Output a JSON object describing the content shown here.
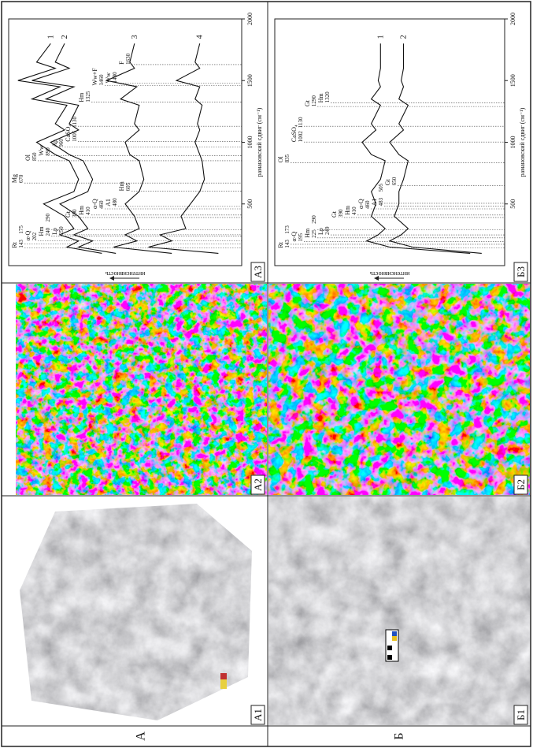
{
  "row_labels": [
    "А",
    "Б"
  ],
  "panels": [
    {
      "label": "А1"
    },
    {
      "label": "А2"
    },
    {
      "label": "А3"
    },
    {
      "label": "Б1"
    },
    {
      "label": "Б2"
    },
    {
      "label": "Б3"
    }
  ],
  "chart_data": [
    {
      "type": "line",
      "xlabel": "рамановский сдвиг (см⁻¹)",
      "ylabel": "интенсивность",
      "xlim": [
        0,
        2000
      ],
      "xticks": [
        500,
        1000,
        1500,
        2000
      ],
      "ylim": [
        0,
        100
      ],
      "x": [
        100,
        150,
        200,
        250,
        300,
        400,
        500,
        600,
        700,
        850,
        900,
        1000,
        1100,
        1150,
        1300,
        1350,
        1450,
        1500,
        1600,
        1650,
        1800
      ],
      "series": [
        {
          "name": "1",
          "color": "#111111",
          "values": [
            60,
            75,
            70,
            78,
            72,
            76,
            85,
            72,
            70,
            74,
            80,
            88,
            76,
            80,
            75,
            90,
            78,
            96,
            80,
            88,
            82
          ]
        },
        {
          "name": "2",
          "color": "#111111",
          "values": [
            54,
            70,
            64,
            72,
            66,
            70,
            78,
            66,
            64,
            68,
            74,
            82,
            70,
            74,
            70,
            84,
            72,
            90,
            74,
            80,
            76
          ]
        },
        {
          "name": "3",
          "color": "#111111",
          "values": [
            30,
            55,
            45,
            50,
            44,
            46,
            50,
            44,
            42,
            44,
            48,
            50,
            44,
            46,
            44,
            52,
            45,
            58,
            46,
            48,
            46
          ]
        },
        {
          "name": "4",
          "color": "#111111",
          "values": [
            10,
            40,
            30,
            35,
            24,
            26,
            22,
            18,
            16,
            17,
            18,
            20,
            18,
            19,
            17,
            20,
            18,
            28,
            18,
            20,
            18
          ]
        }
      ],
      "annotations": [
        {
          "label": "Rt",
          "values": [
            143,
            175
          ]
        },
        {
          "label": "α-Q",
          "values": [
            202
          ]
        },
        {
          "label": "Hm",
          "values": [
            240,
            290
          ]
        },
        {
          "label": "Lp",
          "values": [
            250
          ]
        },
        {
          "label": "Gt",
          "values": [
            390
          ]
        },
        {
          "label": "Hm",
          "values": [
            410
          ]
        },
        {
          "label": "α-Q",
          "values": [
            460
          ]
        },
        {
          "label": "A1",
          "values": [
            480
          ]
        },
        {
          "label": "Hm",
          "values": [
            605
          ]
        },
        {
          "label": "Mg",
          "values": [
            670
          ]
        },
        {
          "label": "Ol",
          "values": [
            850
          ]
        },
        {
          "label": "Ww",
          "values": [
            890
          ]
        },
        {
          "label": "Ap",
          "values": [
            960
          ]
        },
        {
          "label": "CaSO₄",
          "values": [
            1005,
            1130
          ]
        },
        {
          "label": "Hm",
          "values": [
            1325
          ]
        },
        {
          "label": "Ww+F",
          "values": [
            1460
          ]
        },
        {
          "label": "Ww",
          "values": [
            1480
          ]
        },
        {
          "label": "F",
          "values": [
            1630
          ]
        }
      ]
    },
    {
      "type": "line",
      "xlabel": "рамановский сдвиг (см⁻¹)",
      "ylabel": "интенсивность",
      "xlim": [
        0,
        2000
      ],
      "xticks": [
        500,
        1000,
        1500,
        2000
      ],
      "ylim": [
        0,
        100
      ],
      "x": [
        100,
        150,
        200,
        250,
        300,
        400,
        500,
        600,
        700,
        850,
        900,
        1000,
        1100,
        1150,
        1300,
        1350,
        1450,
        1500,
        1600,
        1650,
        1800
      ],
      "series": [
        {
          "name": "1",
          "color": "#111111",
          "values": [
            15,
            50,
            60,
            55,
            52,
            58,
            56,
            58,
            54,
            52,
            58,
            62,
            56,
            58,
            54,
            58,
            54,
            55,
            54,
            54,
            54
          ]
        },
        {
          "name": "2",
          "color": "#111111",
          "values": [
            10,
            40,
            50,
            45,
            42,
            48,
            46,
            46,
            44,
            42,
            46,
            50,
            44,
            46,
            42,
            46,
            44,
            45,
            44,
            44,
            44
          ]
        }
      ],
      "annotations": [
        {
          "label": "Rt",
          "values": [
            143,
            173
          ]
        },
        {
          "label": "α-Q",
          "values": [
            195
          ]
        },
        {
          "label": "Hm",
          "values": [
            225,
            290
          ]
        },
        {
          "label": "Lp",
          "values": [
            249
          ]
        },
        {
          "label": "Gt",
          "values": [
            390
          ]
        },
        {
          "label": "Hm",
          "values": [
            410
          ]
        },
        {
          "label": "α-Q",
          "values": [
            460
          ]
        },
        {
          "label": "A1",
          "values": [
            483,
            505
          ]
        },
        {
          "label": "Gt",
          "values": [
            650
          ]
        },
        {
          "label": "Ol",
          "values": [
            835
          ]
        },
        {
          "label": "CaSO₄",
          "values": [
            1002,
            1130
          ]
        },
        {
          "label": "Gt",
          "values": [
            1290
          ]
        },
        {
          "label": "Hm",
          "values": [
            1320
          ]
        }
      ]
    }
  ]
}
